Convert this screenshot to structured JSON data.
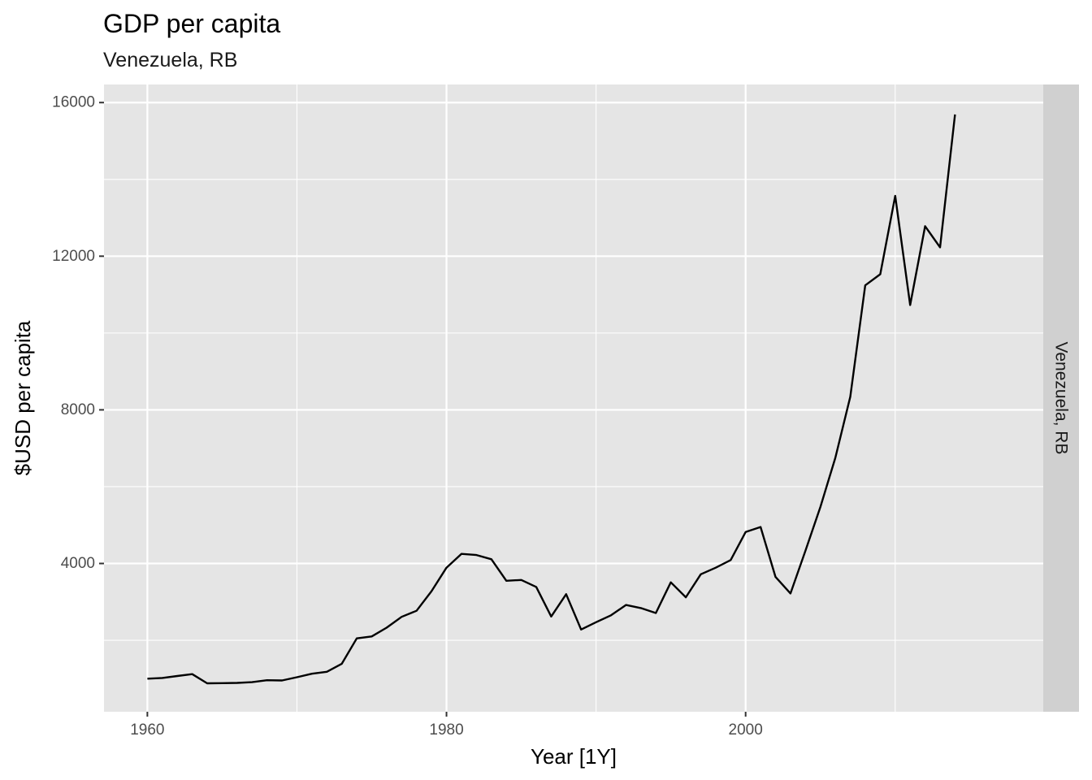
{
  "chart_data": {
    "type": "line",
    "title": "GDP per capita",
    "subtitle": "Venezuela, RB",
    "xlabel": "Year [1Y]",
    "ylabel": "$USD per capita",
    "facet_label": "Venezuela, RB",
    "xlim": [
      1957.1,
      2019.9
    ],
    "ylim": [
      140,
      16470
    ],
    "x_ticks": [
      1960,
      1980,
      2000
    ],
    "x_tick_labels": [
      "1960",
      "1980",
      "2000"
    ],
    "x_minor_ticks": [
      1970,
      1990,
      2010
    ],
    "y_ticks": [
      4000,
      8000,
      12000,
      16000
    ],
    "y_tick_labels": [
      "4000",
      "8000",
      "12000",
      "16000"
    ],
    "y_minor_ticks": [
      2000,
      6000,
      10000,
      14000
    ],
    "grid": true,
    "line_color": "#000000",
    "panel_background": "#e5e5e5",
    "strip_background": "#d0d0d0",
    "series": [
      {
        "x": [
          1960,
          1961,
          1962,
          1963,
          1964,
          1965,
          1966,
          1967,
          1968,
          1969,
          1970,
          1971,
          1972,
          1973,
          1974,
          1975,
          1976,
          1977,
          1978,
          1979,
          1980,
          1981,
          1982,
          1983,
          1984,
          1985,
          1986,
          1987,
          1988,
          1989,
          1990,
          1991,
          1992,
          1993,
          1994,
          1995,
          1996,
          1997,
          1998,
          1999,
          2000,
          2001,
          2002,
          2003,
          2004,
          2005,
          2006,
          2007,
          2008,
          2009,
          2010,
          2011,
          2012,
          2013,
          2014
        ],
        "values": [
          1000,
          1020,
          1070,
          1120,
          880,
          885,
          890,
          910,
          960,
          955,
          1040,
          1130,
          1180,
          1390,
          2050,
          2100,
          2330,
          2610,
          2770,
          3280,
          3890,
          4250,
          4220,
          4110,
          3550,
          3570,
          3390,
          2620,
          3200,
          2280,
          2470,
          2650,
          2920,
          2840,
          2710,
          3510,
          3120,
          3720,
          3890,
          4090,
          4820,
          4950,
          3650,
          3220,
          4330,
          5470,
          6750,
          8340,
          11240,
          11530,
          13570,
          10730,
          12780,
          12230,
          15690
        ]
      }
    ]
  }
}
